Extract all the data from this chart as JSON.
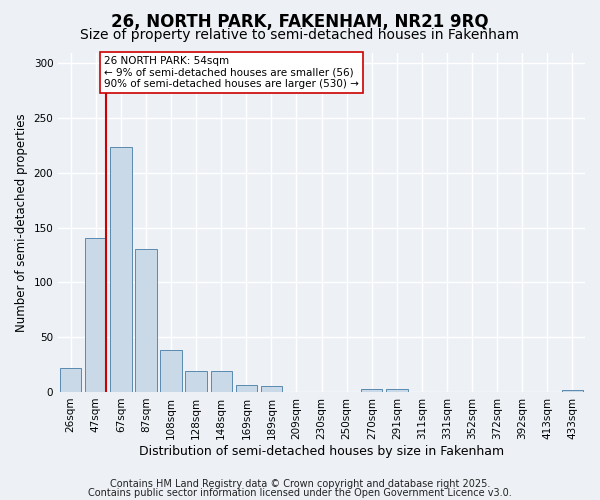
{
  "title1": "26, NORTH PARK, FAKENHAM, NR21 9RQ",
  "title2": "Size of property relative to semi-detached houses in Fakenham",
  "xlabel": "Distribution of semi-detached houses by size in Fakenham",
  "ylabel": "Number of semi-detached properties",
  "categories": [
    "26sqm",
    "47sqm",
    "67sqm",
    "87sqm",
    "108sqm",
    "128sqm",
    "148sqm",
    "169sqm",
    "189sqm",
    "209sqm",
    "230sqm",
    "250sqm",
    "270sqm",
    "291sqm",
    "311sqm",
    "331sqm",
    "352sqm",
    "372sqm",
    "392sqm",
    "413sqm",
    "433sqm"
  ],
  "values": [
    22,
    141,
    224,
    131,
    38,
    19,
    19,
    6,
    5,
    0,
    0,
    0,
    3,
    3,
    0,
    0,
    0,
    0,
    0,
    0,
    2
  ],
  "bar_color": "#c9d9e8",
  "bar_edge_color": "#5a8ab0",
  "vline_x_index": 1.425,
  "vline_color": "#cc0000",
  "annotation_text": "26 NORTH PARK: 54sqm\n← 9% of semi-detached houses are smaller (56)\n90% of semi-detached houses are larger (530) →",
  "annotation_box_color": "#ffffff",
  "annotation_box_edge_color": "#cc0000",
  "ylim": [
    0,
    310
  ],
  "yticks": [
    0,
    50,
    100,
    150,
    200,
    250,
    300
  ],
  "footer1": "Contains HM Land Registry data © Crown copyright and database right 2025.",
  "footer2": "Contains public sector information licensed under the Open Government Licence v3.0.",
  "bg_color": "#edf1f6",
  "plot_bg_color": "#edf1f6",
  "grid_color": "#ffffff",
  "title1_fontsize": 12,
  "title2_fontsize": 10,
  "xlabel_fontsize": 9,
  "ylabel_fontsize": 8.5,
  "tick_fontsize": 7.5,
  "annot_fontsize": 7.5,
  "footer_fontsize": 7
}
